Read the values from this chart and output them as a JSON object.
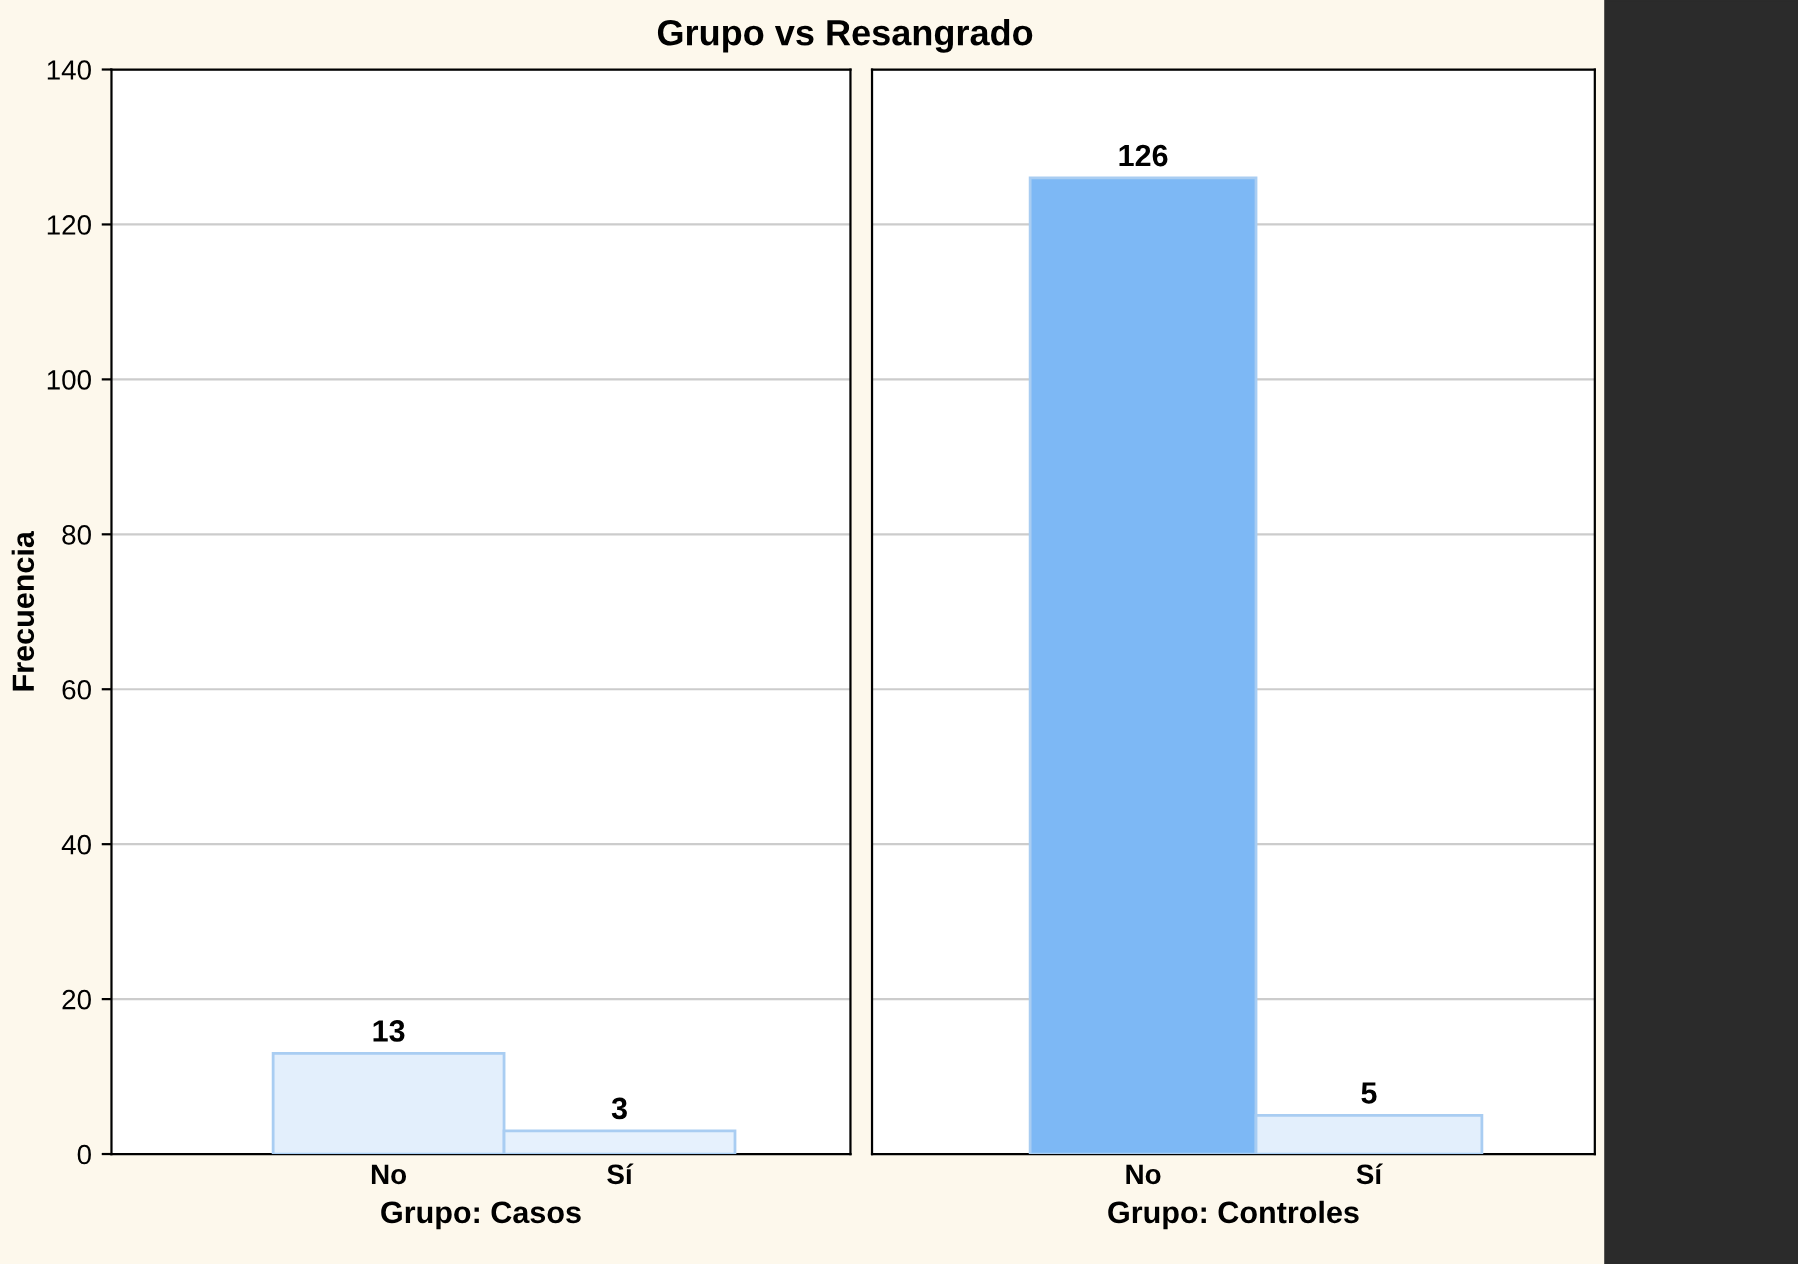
{
  "chart_data": [
    {
      "type": "bar",
      "title": "Grupo vs Resangrado",
      "xlabel": "Grupo: Casos",
      "ylabel": "Frecuencia",
      "categories": [
        "No",
        "Sí"
      ],
      "values": [
        13,
        3
      ],
      "colors": [
        "#e3effc",
        "#e6f1fd"
      ],
      "ylim": [
        0,
        140
      ],
      "yticks": [
        0,
        20,
        40,
        60,
        80,
        100,
        120,
        140
      ],
      "grid": "y",
      "data_labels": true
    },
    {
      "type": "bar",
      "xlabel": "Grupo: Controles",
      "categories": [
        "No",
        "Sí"
      ],
      "values": [
        126,
        5
      ],
      "colors": [
        "#7db8f5",
        "#e3effc"
      ],
      "ylim": [
        0,
        140
      ],
      "yticks": [
        0,
        20,
        40,
        60,
        80,
        100,
        120,
        140
      ],
      "grid": "y",
      "data_labels": true,
      "tick_labels": "x"
    }
  ]
}
